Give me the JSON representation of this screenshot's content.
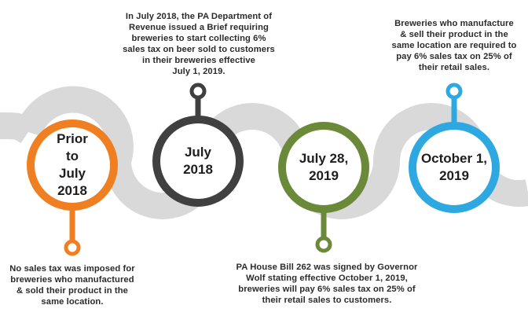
{
  "colors": {
    "road": "#d9d9d9",
    "orange": "#f07f22",
    "dark": "#404040",
    "green": "#6a8a3a",
    "blue": "#2ea8e0"
  },
  "milestones": [
    {
      "label": "Prior\nto\nJuly\n2018",
      "description": "No sales tax was imposed for\nbreweries who manufactured\n& sold their product in the\nsame location."
    },
    {
      "label": "July\n2018",
      "description": "In July 2018, the PA Department of\nRevenue issued a Brief requiring\nbreweries to start collecting 6%\nsales tax on beer sold to customers\nin their breweries effective\nJuly 1, 2019."
    },
    {
      "label": "July 28,\n2019",
      "description": "PA House Bill 262 was signed by Governor\nWolf stating effective October 1, 2019,\nbreweries will pay 6% sales tax on 25% of\ntheir retail sales to customers."
    },
    {
      "label": "October 1,\n2019",
      "description": "Breweries who manufacture\n& sell their product in the\nsame location are required to\npay 6% sales tax on 25% of\ntheir retail sales."
    }
  ]
}
